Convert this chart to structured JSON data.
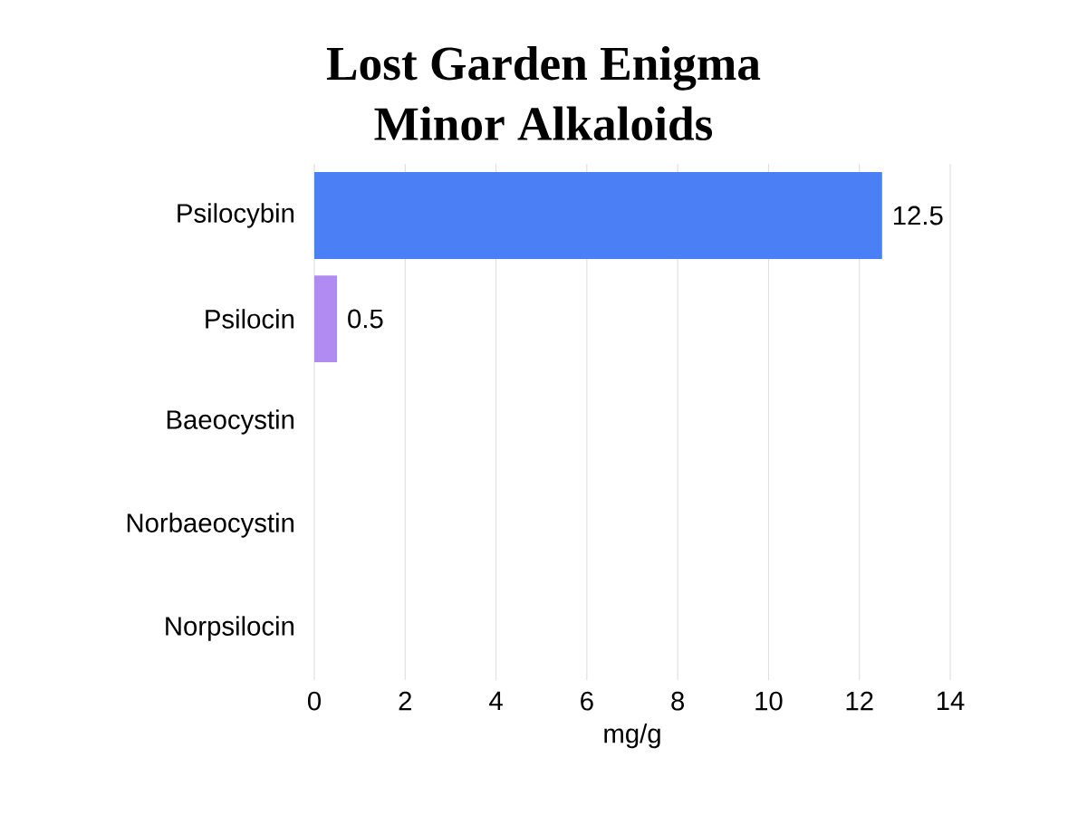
{
  "chart_data": {
    "type": "bar",
    "orientation": "horizontal",
    "title": "Lost Garden Enigma\nMinor Alkaloids",
    "xlabel": "mg/g",
    "categories": [
      "Psilocybin",
      "Psilocin",
      "Baeocystin",
      "Norbaeocystin",
      "Norpsilocin"
    ],
    "values": [
      12.5,
      0.5,
      0,
      0,
      0
    ],
    "colors": [
      "#4a7ff5",
      "#b08cf2",
      "#4a7ff5",
      "#4a7ff5",
      "#4a7ff5"
    ],
    "value_labels": [
      "12.5",
      "0.5",
      null,
      null,
      null
    ],
    "xlim": [
      0,
      14
    ],
    "xticks": [
      0,
      2,
      4,
      6,
      8,
      10,
      12,
      14
    ],
    "grid": "x"
  }
}
